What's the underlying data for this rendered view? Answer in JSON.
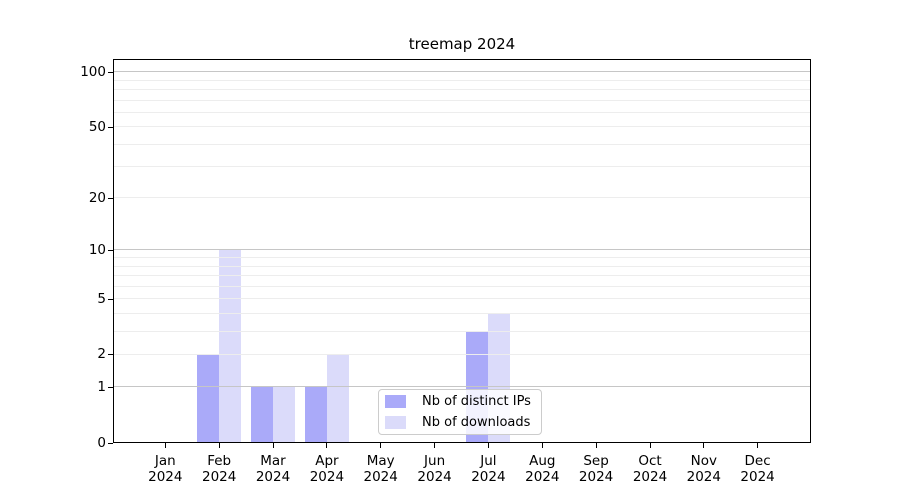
{
  "figure": {
    "title": "treemap 2024"
  },
  "chart_data": {
    "type": "bar",
    "title": "treemap 2024",
    "categories": [
      "Jan 2024",
      "Feb 2024",
      "Mar 2024",
      "Apr 2024",
      "May 2024",
      "Jun 2024",
      "Jul 2024",
      "Aug 2024",
      "Sep 2024",
      "Oct 2024",
      "Nov 2024",
      "Dec 2024"
    ],
    "series": [
      {
        "name": "Nb of distinct IPs",
        "color": "#aaaaf9",
        "values": [
          0,
          2,
          1,
          1,
          0,
          0,
          3,
          0,
          0,
          0,
          0,
          0
        ]
      },
      {
        "name": "Nb of downloads",
        "color": "#dbdbfa",
        "values": [
          0,
          10,
          1,
          2,
          0,
          0,
          4,
          0,
          0,
          0,
          0,
          0
        ]
      }
    ],
    "xlabel": "",
    "ylabel": "",
    "yscale": "log10(1+y)",
    "ylim": [
      0,
      118
    ],
    "yticks": [
      0,
      1,
      2,
      5,
      10,
      20,
      50,
      100
    ],
    "minor_gridlines": [
      3,
      4,
      6,
      7,
      8,
      9,
      30,
      40,
      60,
      70,
      80,
      90
    ],
    "grid": "on",
    "legend_position": "lower center",
    "colors": {
      "major_gridline": "#c6c6c6",
      "minor_gridline": "#ededed",
      "spine": "#000000",
      "text": "#000000",
      "background": "#ffffff",
      "legend_border": "#cccccc"
    }
  }
}
